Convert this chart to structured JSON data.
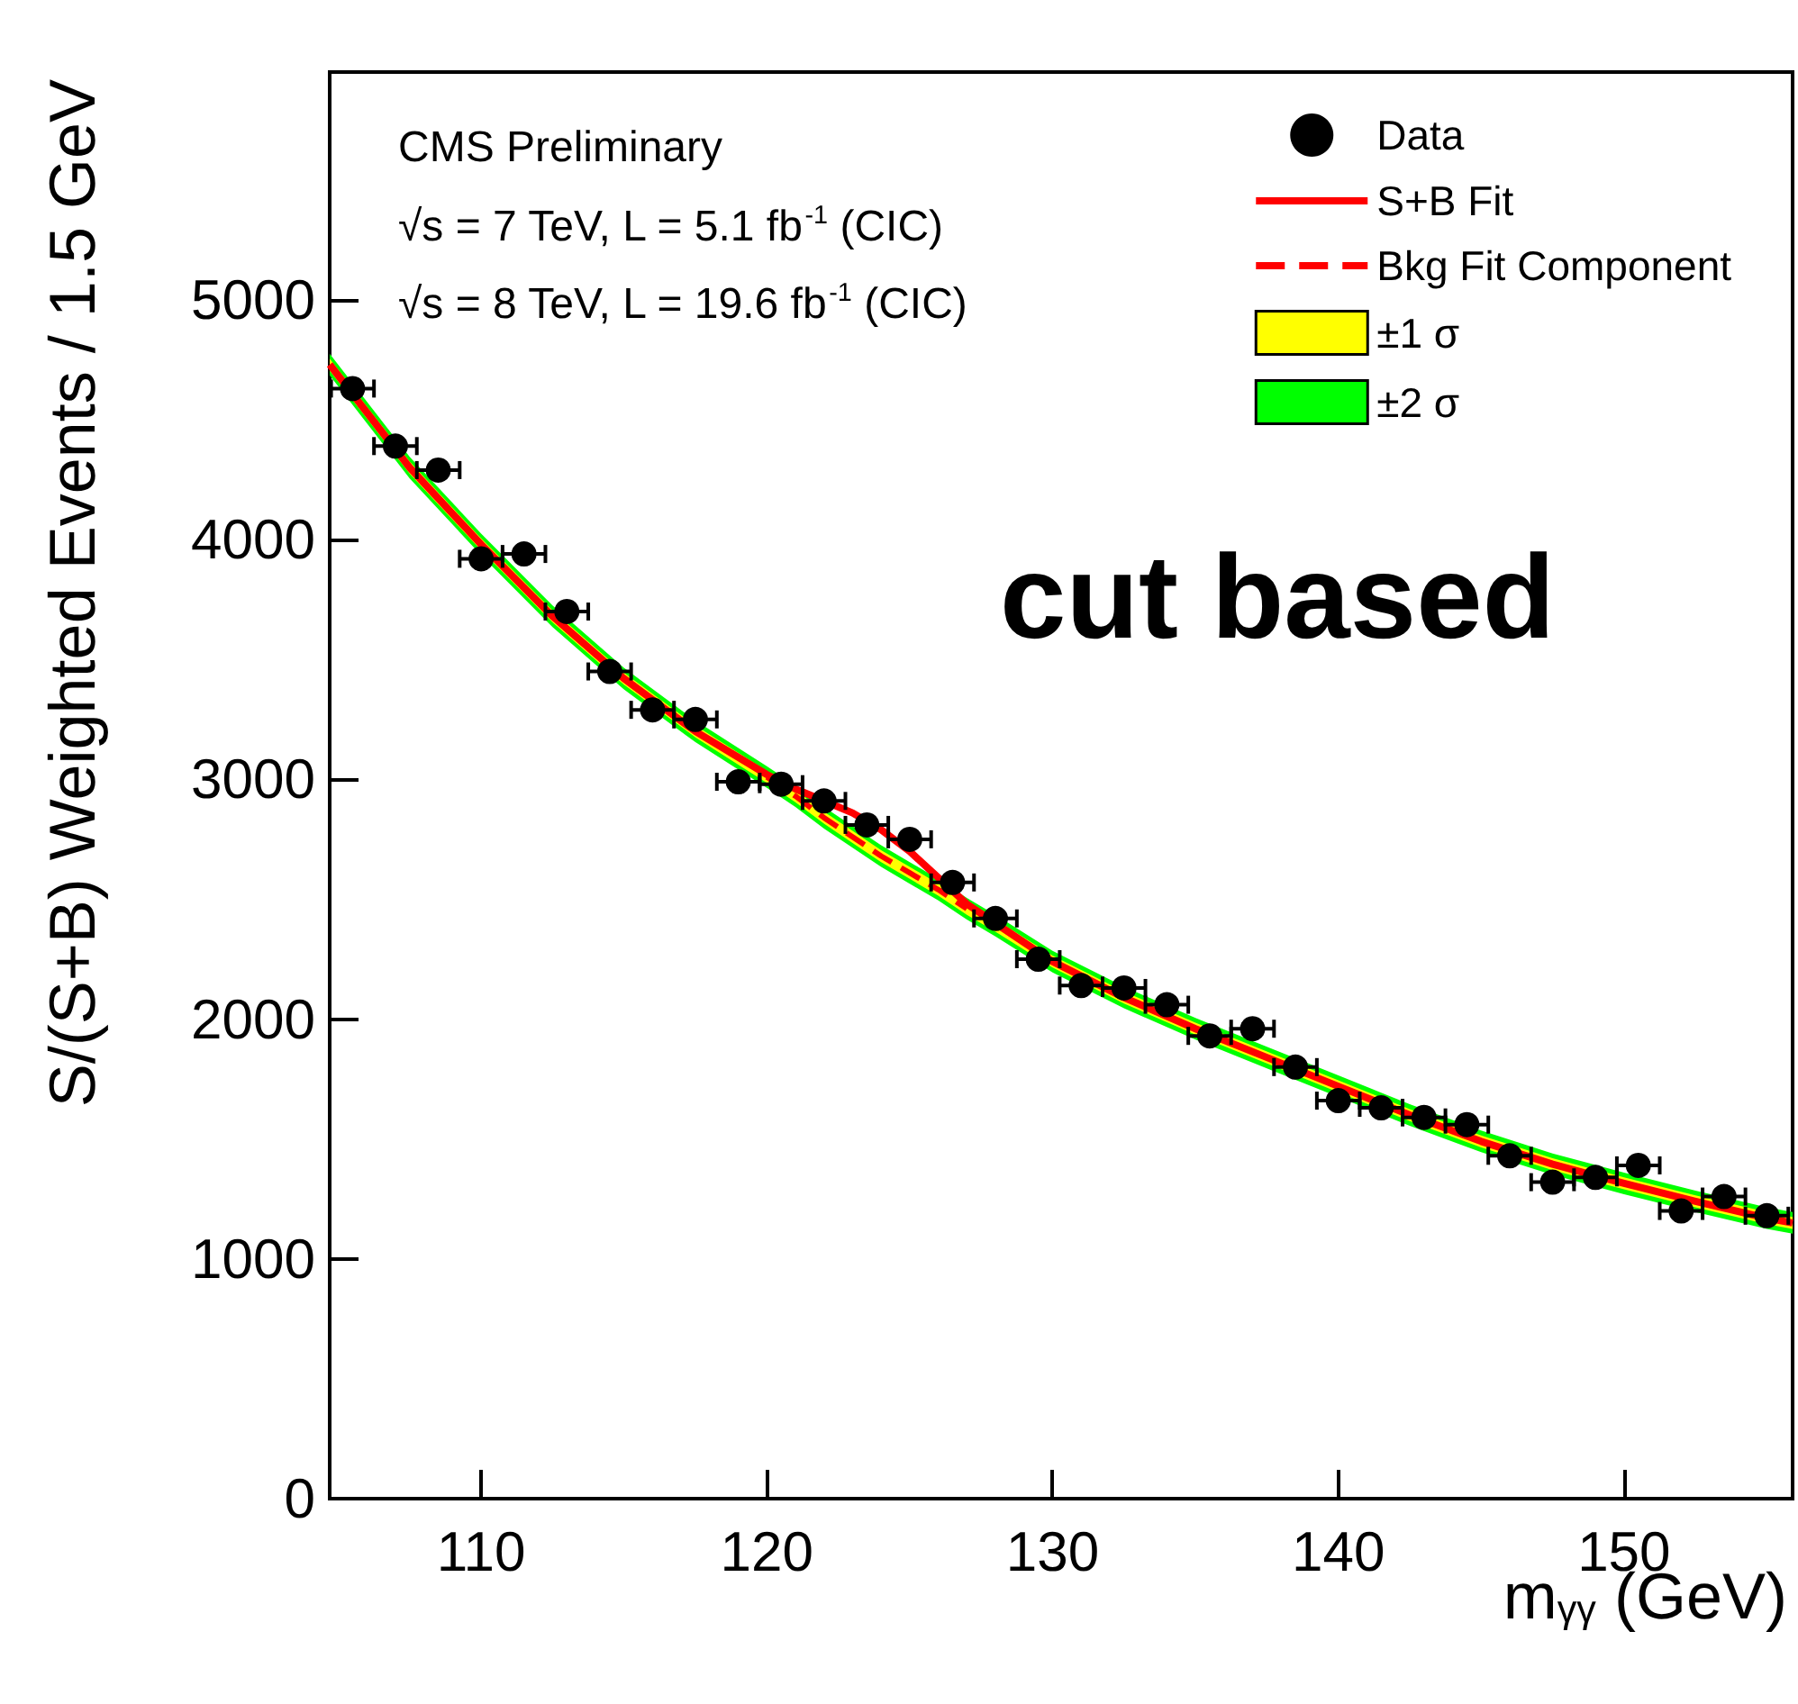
{
  "chart_data": {
    "type": "line",
    "xlabel": "m$_{γγ}$ (GeV)",
    "ylabel": "S/(S+B) Weighted Events / 1.5 GeV",
    "annotations": [
      "CMS Preliminary",
      "√s = 7 TeV, L = 5.1 fb$^{-1}$ (CIC)",
      "√s = 8 TeV, L = 19.6 fb$^{-1}$ (CIC)",
      "cut based"
    ],
    "xlim": [
      104.7,
      155.9
    ],
    "xticks": [
      110,
      120,
      130,
      140,
      150
    ],
    "ylim": [
      0,
      5950
    ],
    "yticks": [
      0,
      1000,
      2000,
      3000,
      4000,
      5000
    ],
    "legend": "top right",
    "grid": false,
    "series": [
      {
        "name": "Data",
        "type": "scatter",
        "marker": "circle",
        "color": "#000000",
        "x": [
          105.5,
          107,
          108.5,
          110,
          111.5,
          113,
          114.5,
          116,
          117.5,
          119,
          120.5,
          122,
          123.5,
          125,
          126.5,
          128,
          129.5,
          131,
          132.5,
          134,
          135.5,
          137,
          138.5,
          140,
          141.5,
          143,
          144.5,
          146,
          147.5,
          149,
          150.5,
          152,
          153.5,
          155
        ],
        "values": [
          4630,
          4390,
          4290,
          3920,
          3940,
          3700,
          3450,
          3290,
          3250,
          2990,
          2980,
          2910,
          2810,
          2750,
          2570,
          2420,
          2250,
          2140,
          2130,
          2060,
          1930,
          1960,
          1800,
          1660,
          1630,
          1590,
          1560,
          1430,
          1320,
          1340,
          1390,
          1200,
          1260,
          1180
        ],
        "errors": [
          40,
          40,
          40,
          40,
          40,
          40,
          40,
          40,
          40,
          40,
          40,
          40,
          40,
          40,
          40,
          40,
          40,
          40,
          40,
          40,
          40,
          40,
          40,
          40,
          40,
          40,
          40,
          40,
          40,
          40,
          40,
          40,
          40,
          40
        ],
        "xerrors": [
          0.75,
          0.75,
          0.75,
          0.75,
          0.75,
          0.75,
          0.75,
          0.75,
          0.75,
          0.75,
          0.75,
          0.75,
          0.75,
          0.75,
          0.75,
          0.75,
          0.75,
          0.75,
          0.75,
          0.75,
          0.75,
          0.75,
          0.75,
          0.75,
          0.75,
          0.75,
          0.75,
          0.75,
          0.75,
          0.75,
          0.75,
          0.75,
          0.75,
          0.75
        ]
      },
      {
        "name": "S+B Fit",
        "type": "line",
        "color": "#ff0000",
        "line_style": "solid",
        "x": [
          104.7,
          107.5,
          110,
          112.5,
          115,
          117.5,
          120,
          121,
          122,
          123,
          124,
          125,
          126,
          127,
          128,
          130,
          132.5,
          135,
          137.5,
          140,
          142.5,
          145,
          147.5,
          150,
          152.5,
          155,
          155.9
        ],
        "values": [
          4730,
          4300,
          3980,
          3680,
          3420,
          3200,
          3020,
          2960,
          2910,
          2860,
          2790,
          2700,
          2590,
          2480,
          2400,
          2240,
          2090,
          1960,
          1840,
          1720,
          1600,
          1490,
          1395,
          1315,
          1240,
          1170,
          1150
        ]
      },
      {
        "name": "Bkg Fit Component",
        "type": "line",
        "color": "#ff0000",
        "line_style": "dashed",
        "x": [
          120,
          121,
          122,
          123,
          124,
          125,
          126,
          127
        ],
        "values": [
          3010,
          2930,
          2840,
          2760,
          2680,
          2610,
          2540,
          2460
        ]
      },
      {
        "name": "±1 σ",
        "type": "line",
        "color": "#ffff00",
        "x": [
          104.7,
          107.5,
          110,
          112.5,
          115,
          117.5,
          120,
          121,
          122,
          123,
          124,
          125,
          126,
          127,
          128,
          130,
          132.5,
          135,
          137.5,
          140,
          142.5,
          145,
          147.5,
          150,
          152.5,
          155,
          155.9
        ],
        "values": [
          null,
          null,
          null,
          null,
          null,
          null,
          null,
          null,
          null,
          null,
          null,
          null,
          null,
          null,
          null,
          null,
          null,
          null,
          null,
          null,
          null,
          null,
          null,
          null,
          null,
          null,
          null
        ],
        "lower": [
          4705,
          4275,
          3955,
          3655,
          3395,
          3175,
          2985,
          2905,
          2815,
          2735,
          2655,
          2585,
          2515,
          2435,
          2365,
          2215,
          2065,
          1935,
          1815,
          1695,
          1575,
          1465,
          1370,
          1290,
          1215,
          1145,
          1125
        ],
        "upper": [
          4755,
          4325,
          4005,
          3705,
          3445,
          3225,
          3035,
          2955,
          2865,
          2785,
          2705,
          2635,
          2565,
          2485,
          2415,
          2265,
          2115,
          1985,
          1865,
          1745,
          1625,
          1515,
          1420,
          1340,
          1265,
          1195,
          1175
        ]
      },
      {
        "name": "±2 σ",
        "type": "line",
        "color": "#00ff00",
        "x": [
          104.7,
          107.5,
          110,
          112.5,
          115,
          117.5,
          120,
          121,
          122,
          123,
          124,
          125,
          126,
          127,
          128,
          130,
          132.5,
          135,
          137.5,
          140,
          142.5,
          145,
          147.5,
          150,
          152.5,
          155,
          155.9
        ],
        "values": [
          null,
          null,
          null,
          null,
          null,
          null,
          null,
          null,
          null,
          null,
          null,
          null,
          null,
          null,
          null,
          null,
          null,
          null,
          null,
          null,
          null,
          null,
          null,
          null,
          null,
          null,
          null
        ],
        "lower": [
          4685,
          4255,
          3935,
          3635,
          3375,
          3155,
          2965,
          2885,
          2795,
          2715,
          2635,
          2565,
          2495,
          2415,
          2345,
          2195,
          2045,
          1915,
          1795,
          1675,
          1555,
          1445,
          1350,
          1270,
          1195,
          1125,
          1105
        ],
        "upper": [
          4775,
          4345,
          4025,
          3725,
          3465,
          3245,
          3055,
          2975,
          2885,
          2805,
          2725,
          2655,
          2585,
          2505,
          2435,
          2285,
          2135,
          2005,
          1885,
          1765,
          1645,
          1535,
          1440,
          1360,
          1285,
          1215,
          1195
        ]
      }
    ]
  }
}
